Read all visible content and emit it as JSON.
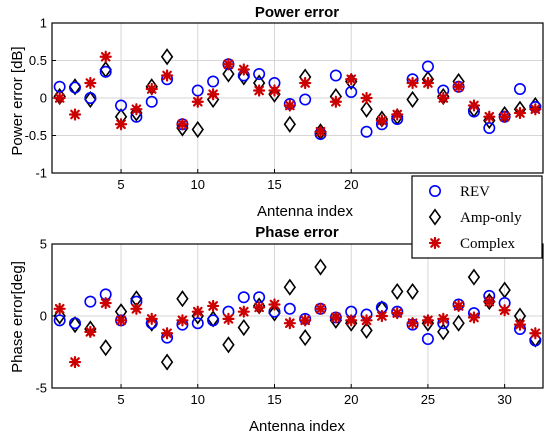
{
  "chart_data": [
    {
      "type": "scatter",
      "title": "Power error",
      "xlabel": "Antenna index",
      "ylabel": "Power error [dB]",
      "xlim": [
        0.5,
        32.5
      ],
      "ylim": [
        -1,
        1
      ],
      "xticks": [
        5,
        10,
        15,
        20
      ],
      "xtick_labels": [
        "5",
        "10",
        "15",
        "20"
      ],
      "yticks": [
        -1,
        -0.5,
        0,
        0.5,
        1
      ],
      "ytick_labels": [
        "-1",
        "-0.5",
        "0",
        "0.5",
        "1"
      ],
      "grid": true,
      "legend": "bottom-right",
      "x": [
        1,
        2,
        3,
        4,
        5,
        6,
        7,
        8,
        9,
        10,
        11,
        12,
        13,
        14,
        15,
        16,
        17,
        18,
        19,
        20,
        21,
        22,
        23,
        24,
        25,
        26,
        27,
        28,
        29,
        30,
        31,
        32
      ],
      "series": [
        {
          "name": "REV",
          "marker": "circle",
          "color": "#0000ff",
          "values": [
            0.15,
            0.14,
            0.0,
            0.35,
            -0.1,
            -0.25,
            -0.05,
            0.25,
            -0.35,
            0.1,
            0.22,
            0.45,
            0.3,
            0.32,
            0.2,
            -0.08,
            -0.02,
            -0.48,
            0.3,
            0.08,
            -0.45,
            -0.35,
            -0.28,
            0.25,
            0.42,
            0.1,
            0.15,
            -0.18,
            -0.4,
            -0.25,
            0.12,
            -0.12
          ]
        },
        {
          "name": "Amp-only",
          "marker": "diamond",
          "color": "#000000",
          "values": [
            0.02,
            0.15,
            -0.02,
            0.38,
            -0.25,
            -0.2,
            0.15,
            0.55,
            -0.4,
            -0.42,
            -0.02,
            0.32,
            0.28,
            0.2,
            0.05,
            -0.35,
            0.28,
            -0.45,
            0.02,
            0.22,
            -0.15,
            -0.28,
            -0.25,
            -0.02,
            0.25,
            0.02,
            0.22,
            -0.15,
            -0.3,
            -0.22,
            -0.15,
            -0.1
          ]
        },
        {
          "name": "Complex",
          "marker": "star",
          "color": "#cc0000",
          "values": [
            0.0,
            -0.22,
            0.2,
            0.55,
            -0.35,
            -0.15,
            0.12,
            0.3,
            -0.35,
            -0.05,
            0.05,
            0.45,
            0.38,
            0.1,
            0.1,
            -0.1,
            0.2,
            -0.45,
            -0.05,
            0.25,
            0.0,
            -0.3,
            -0.22,
            0.2,
            0.2,
            0.0,
            0.15,
            -0.1,
            -0.25,
            -0.25,
            -0.2,
            -0.15
          ]
        }
      ]
    },
    {
      "type": "scatter",
      "title": "Phase error",
      "xlabel": "Antenna index",
      "ylabel": "Phase error[deg]",
      "xlim": [
        0.5,
        32.5
      ],
      "ylim": [
        -5,
        5
      ],
      "xticks": [
        5,
        10,
        15,
        20,
        25,
        30
      ],
      "xtick_labels": [
        "5",
        "10",
        "15",
        "20",
        "25",
        "30"
      ],
      "yticks": [
        -5,
        0,
        5
      ],
      "ytick_labels": [
        "-5",
        "0",
        "5"
      ],
      "grid": true,
      "x": [
        1,
        2,
        3,
        4,
        5,
        6,
        7,
        8,
        9,
        10,
        11,
        12,
        13,
        14,
        15,
        16,
        17,
        18,
        19,
        20,
        21,
        22,
        23,
        24,
        25,
        26,
        27,
        28,
        29,
        30,
        31,
        32
      ],
      "series": [
        {
          "name": "REV",
          "marker": "circle",
          "color": "#0000ff",
          "values": [
            -0.3,
            -0.5,
            1.0,
            1.5,
            -0.3,
            1.0,
            -0.5,
            -1.5,
            -0.6,
            -0.5,
            -0.3,
            0.3,
            1.3,
            1.3,
            0.3,
            0.5,
            -0.2,
            0.5,
            -0.1,
            0.3,
            0.1,
            0.6,
            0.3,
            -0.6,
            -1.6,
            -0.5,
            0.8,
            0.2,
            1.4,
            0.9,
            -0.9,
            -1.7
          ]
        },
        {
          "name": "Amp-only",
          "marker": "diamond",
          "color": "#000000",
          "values": [
            0.0,
            -0.6,
            -0.9,
            -2.2,
            0.3,
            1.2,
            -0.5,
            -3.2,
            1.2,
            0.0,
            -0.2,
            -2.0,
            -0.8,
            0.7,
            0.2,
            2.0,
            -1.5,
            3.4,
            -0.3,
            -0.5,
            -1.0,
            0.5,
            1.7,
            1.7,
            -0.5,
            -1.1,
            -0.5,
            2.7,
            1.0,
            1.8,
            0.0,
            -1.6
          ]
        },
        {
          "name": "Complex",
          "marker": "star",
          "color": "#cc0000",
          "values": [
            0.5,
            -3.2,
            -1.1,
            0.9,
            -0.3,
            0.5,
            -0.2,
            -1.2,
            -0.3,
            0.3,
            0.7,
            -0.2,
            0.3,
            0.6,
            0.8,
            -0.5,
            -0.3,
            0.5,
            -0.1,
            -0.3,
            -0.3,
            0.0,
            0.2,
            -0.5,
            -0.3,
            -0.2,
            0.7,
            -0.1,
            1.0,
            0.4,
            -0.6,
            -1.2
          ]
        }
      ]
    }
  ]
}
